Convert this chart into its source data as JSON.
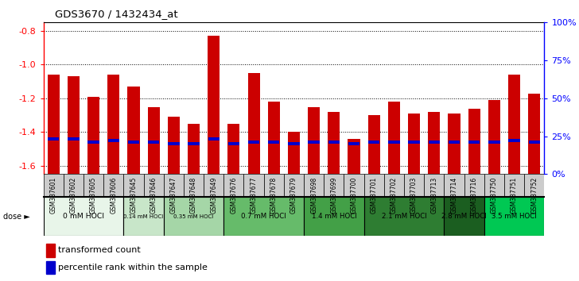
{
  "title": "GDS3670 / 1432434_at",
  "samples": [
    "GSM387601",
    "GSM387602",
    "GSM387605",
    "GSM387606",
    "GSM387645",
    "GSM387646",
    "GSM387647",
    "GSM387648",
    "GSM387649",
    "GSM387676",
    "GSM387677",
    "GSM387678",
    "GSM387679",
    "GSM387698",
    "GSM387699",
    "GSM387700",
    "GSM387701",
    "GSM387702",
    "GSM387703",
    "GSM387713",
    "GSM387714",
    "GSM387716",
    "GSM387750",
    "GSM387751",
    "GSM387752"
  ],
  "transformed_counts": [
    -1.06,
    -1.07,
    -1.19,
    -1.06,
    -1.13,
    -1.25,
    -1.31,
    -1.35,
    -0.83,
    -1.35,
    -1.05,
    -1.22,
    -1.4,
    -1.25,
    -1.28,
    -1.44,
    -1.3,
    -1.22,
    -1.29,
    -1.28,
    -1.29,
    -1.26,
    -1.21,
    -1.06,
    -1.17
  ],
  "percentile_positions": [
    -1.44,
    -1.44,
    -1.46,
    -1.45,
    -1.46,
    -1.46,
    -1.47,
    -1.47,
    -1.44,
    -1.47,
    -1.46,
    -1.46,
    -1.47,
    -1.46,
    -1.46,
    -1.47,
    -1.46,
    -1.46,
    -1.46,
    -1.46,
    -1.46,
    -1.46,
    -1.46,
    -1.45,
    -1.46
  ],
  "dose_groups": [
    {
      "label": "0 mM HOCl",
      "start": 0,
      "end": 4,
      "color": "#e8f5e9",
      "fontsize": 8.5
    },
    {
      "label": "0.14 mM HOCl",
      "start": 4,
      "end": 6,
      "color": "#c8e6c9",
      "fontsize": 6.5
    },
    {
      "label": "0.35 mM HOCl",
      "start": 6,
      "end": 9,
      "color": "#a5d6a7",
      "fontsize": 6.5
    },
    {
      "label": "0.7 mM HOCl",
      "start": 9,
      "end": 13,
      "color": "#66bb6a",
      "fontsize": 8
    },
    {
      "label": "1.4 mM HOCl",
      "start": 13,
      "end": 16,
      "color": "#43a047",
      "fontsize": 8
    },
    {
      "label": "2.1 mM HOCl",
      "start": 16,
      "end": 20,
      "color": "#2e7d32",
      "fontsize": 8
    },
    {
      "label": "2.8 mM HOCl",
      "start": 20,
      "end": 22,
      "color": "#1b5e20",
      "fontsize": 8
    },
    {
      "label": "3.5 mM HOCl",
      "start": 22,
      "end": 25,
      "color": "#00c853",
      "fontsize": 8
    }
  ],
  "bar_color": "#cc0000",
  "percentile_color": "#0000cc",
  "ylim_left": [
    -1.65,
    -0.75
  ],
  "yticks_left": [
    -1.6,
    -1.4,
    -1.2,
    -1.0,
    -0.8
  ],
  "yticks_right": [
    0,
    25,
    50,
    75,
    100
  ],
  "bar_width": 0.6,
  "bg_color": "#ffffff",
  "label_bg": "#d0d0d0",
  "dose_label_color": "#000000"
}
